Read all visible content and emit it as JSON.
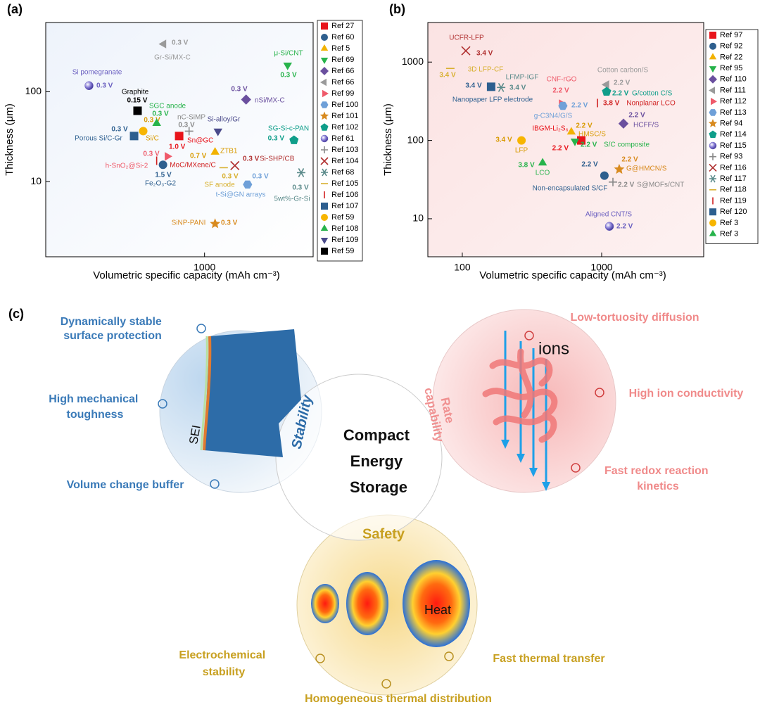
{
  "chart_data": [
    {
      "type": "scatter",
      "panel": "(a)",
      "xlabel": "Volumetric specific capacity (mAh cm⁻³)",
      "ylabel": "Thickness (μm)",
      "xscale": "log",
      "yscale": "log",
      "xlim": [
        167,
        3400
      ],
      "ylim": [
        1.46,
        590
      ],
      "xticks": [
        1000
      ],
      "yticks": [
        10,
        100
      ],
      "series": [
        {
          "name": "Ref 27",
          "color": "#e8141b",
          "marker": "square",
          "x": [
            751
          ],
          "values": [
            32.2
          ],
          "label": "Sn@GC",
          "voltage": "1.0 V"
        },
        {
          "name": "Ref 60",
          "color": "#2e5f8e",
          "marker": "circle",
          "x": [
            626
          ],
          "values": [
            15.4
          ],
          "label": "Fe₂O₃-G2",
          "voltage": "1.5 V"
        },
        {
          "name": "Ref 5",
          "color": "#f2b200",
          "marker": "tri-up",
          "x": [
            1126
          ],
          "values": [
            21.3
          ],
          "label": "ZTB1",
          "voltage": "0.7 V"
        },
        {
          "name": "Ref 69",
          "color": "#27b34b",
          "marker": "tri-down",
          "x": [
            2550
          ],
          "values": [
            198
          ],
          "label": "μ-Si/CNT",
          "voltage": "0.3 V"
        },
        {
          "name": "Ref 66",
          "color": "#6a4f9e",
          "marker": "diamond",
          "x": [
            1597
          ],
          "values": [
            82
          ],
          "label": "nSi/MX-C",
          "voltage": "0.3 V"
        },
        {
          "name": "Ref 66",
          "color": "#9a9a9a",
          "marker": "tri-left",
          "x": [
            631
          ],
          "values": [
            340
          ],
          "label": "Gr-Si/MX-C",
          "voltage": "0.3 V"
        },
        {
          "name": "Ref 99",
          "color": "#ef5a6a",
          "marker": "tri-right",
          "x": [
            657
          ],
          "values": [
            19.1
          ],
          "label": "h-SnO₂@Si-2",
          "voltage": "0.3 V"
        },
        {
          "name": "Ref 100",
          "color": "#6fa0d8",
          "marker": "hexagon",
          "x": [
            1623
          ],
          "values": [
            9.3
          ],
          "label": "t-Si@GN arrays",
          "voltage": "0.3 V"
        },
        {
          "name": "Ref 101",
          "color": "#d88a1e",
          "marker": "star",
          "x": [
            1126
          ],
          "values": [
            3.4
          ],
          "label": "SiNP-PANI",
          "voltage": "0.3 V"
        },
        {
          "name": "Ref 102",
          "color": "#0f9e8a",
          "marker": "pentagon",
          "x": [
            2740
          ],
          "values": [
            28.9
          ],
          "label": "SG-Si-c-PAN",
          "voltage": "0.3 V"
        },
        {
          "name": "Ref 61",
          "color": "#6a5fc0",
          "marker": "sphere",
          "x": [
            272
          ],
          "values": [
            117
          ],
          "label": "Si pomegranate",
          "voltage": "0.3 V"
        },
        {
          "name": "Ref 103",
          "color": "#888888",
          "marker": "plus",
          "x": [
            840
          ],
          "values": [
            36.5
          ],
          "label": "nC-SiMP",
          "voltage": "0.3 V"
        },
        {
          "name": "Ref 104",
          "color": "#b03030",
          "marker": "x",
          "x": [
            1407
          ],
          "values": [
            15.1
          ],
          "label": "Si-SHP/CB",
          "voltage": "0.3 V"
        },
        {
          "name": "Ref 68",
          "color": "#5a8a8a",
          "marker": "asterisk",
          "x": [
            2970
          ],
          "values": [
            12.6
          ],
          "label": "5wt%-Gr-Si",
          "voltage": "0.3 V"
        },
        {
          "name": "Ref 105",
          "color": "#d8b030",
          "marker": "hline",
          "x": [
            1240
          ],
          "values": [
            14.3
          ],
          "label": "SF anode",
          "voltage": "0.3 V"
        },
        {
          "name": "Ref 106",
          "color": "#d02020",
          "marker": "vline",
          "x": [
            583
          ],
          "values": [
            17.1
          ],
          "label": "MoC/MXene/C"
        },
        {
          "name": "Ref 107",
          "color": "#2d5f8f",
          "marker": "square",
          "x": [
            452
          ],
          "values": [
            32.2
          ],
          "label": "Porous Si/C-Gr",
          "voltage": "0.3 V"
        },
        {
          "name": "Ref 59",
          "color": "#f7b500",
          "marker": "circle",
          "x": [
            501
          ],
          "values": [
            36.5
          ],
          "label": "Si/C",
          "voltage": "0.3 V"
        },
        {
          "name": "Ref 108",
          "color": "#27b34b",
          "marker": "tri-up",
          "x": [
            583
          ],
          "values": [
            44.5
          ],
          "label": "SGC anode",
          "voltage": "0.3 V"
        },
        {
          "name": "Ref 109",
          "color": "#4a4a8a",
          "marker": "tri-down",
          "x": [
            1163
          ],
          "values": [
            36.5
          ],
          "label": "Si-alloy/Gr"
        },
        {
          "name": "Ref 59",
          "color": "#000000",
          "marker": "square",
          "x": [
            470
          ],
          "values": [
            61.5
          ],
          "label": "Graphite",
          "voltage": "0.15 V"
        }
      ]
    },
    {
      "type": "scatter",
      "panel": "(b)",
      "xlabel": "Volumetric specific capacity (mAh cm⁻³)",
      "ylabel": "Thickness (μm)",
      "xscale": "log",
      "yscale": "log",
      "xlim": [
        56.6,
        5400
      ],
      "ylim": [
        3.27,
        3200
      ],
      "xticks": [
        100,
        1000
      ],
      "yticks": [
        10,
        100,
        1000
      ],
      "series": [
        {
          "name": "Ref 97",
          "color": "#e8141b",
          "marker": "square",
          "x": [
            714
          ],
          "values": [
            100
          ],
          "label": "IBGM-Li₂S₆",
          "voltage": "2.2 V"
        },
        {
          "name": "Ref 92",
          "color": "#2e5f8e",
          "marker": "circle",
          "x": [
            1047
          ],
          "values": [
            35.5
          ],
          "label": "Non-encapsulated S/CF",
          "voltage": "2.2 V"
        },
        {
          "name": "Ref 22",
          "color": "#f2b200",
          "marker": "tri-up",
          "x": [
            606
          ],
          "values": [
            128
          ],
          "label": "HMSC/S",
          "voltage": "2.2 V"
        },
        {
          "name": "Ref 95",
          "color": "#27b34b",
          "marker": "tri-down",
          "x": [
            643
          ],
          "values": [
            98
          ],
          "label": "S/C composite",
          "voltage": "2.2 V"
        },
        {
          "name": "Ref 110",
          "color": "#6a4f9e",
          "marker": "diamond",
          "x": [
            1435
          ],
          "values": [
            164
          ],
          "label": "HCFF/S",
          "voltage": "2.2 V"
        },
        {
          "name": "Ref 111",
          "color": "#9a9a9a",
          "marker": "tri-left",
          "x": [
            1085
          ],
          "values": [
            515
          ],
          "label": "Cotton carbon/S",
          "voltage": "2.2 V"
        },
        {
          "name": "Ref 112",
          "color": "#ef5a6a",
          "marker": "tri-right",
          "x": [
            515
          ],
          "values": [
            294
          ],
          "label": "CNF-rGO",
          "voltage": "2.2 V"
        },
        {
          "name": "Ref 113",
          "color": "#6fa0d8",
          "marker": "hexagon",
          "x": [
            527
          ],
          "values": [
            276
          ],
          "label": "g-C3N4/G/S",
          "voltage": "2.2 V"
        },
        {
          "name": "Ref 94",
          "color": "#d88a1e",
          "marker": "star",
          "x": [
            1337
          ],
          "values": [
            42.7
          ],
          "label": "G@HMCN/S",
          "voltage": "2.2 V"
        },
        {
          "name": "Ref 114",
          "color": "#0f9e8a",
          "marker": "pentagon",
          "x": [
            1085
          ],
          "values": [
            418
          ],
          "label": "G/cotton C/S",
          "voltage": "2.2 V"
        },
        {
          "name": "Ref 115",
          "color": "#6a5fc0",
          "marker": "sphere",
          "x": [
            1137
          ],
          "values": [
            8.0
          ],
          "label": "Aligned CNT/S",
          "voltage": "2.2 V"
        },
        {
          "name": "Ref 93",
          "color": "#888888",
          "marker": "plus",
          "x": [
            1205
          ],
          "values": [
            29.4
          ],
          "label": "S@MOFs/CNT",
          "voltage": "2.2 V"
        },
        {
          "name": "Ref 116",
          "color": "#b03030",
          "marker": "x",
          "x": [
            106
          ],
          "values": [
            1393
          ],
          "label": "UCFR-LFP",
          "voltage": "3.4 V"
        },
        {
          "name": "Ref 117",
          "color": "#5a8a8a",
          "marker": "asterisk",
          "x": [
            190
          ],
          "values": [
            474
          ],
          "label": "LFMP-IGF",
          "voltage": "3.4 V"
        },
        {
          "name": "Ref 118",
          "color": "#d8b030",
          "marker": "hline",
          "x": [
            82
          ],
          "values": [
            830
          ],
          "label": "3D LFP-CF",
          "voltage": "3.4 V"
        },
        {
          "name": "Ref 119",
          "color": "#d02020",
          "marker": "vline",
          "x": [
            933
          ],
          "values": [
            300
          ],
          "label": "Nonplanar LCO",
          "voltage": "3.8 V"
        },
        {
          "name": "Ref 120",
          "color": "#2d5f8f",
          "marker": "square",
          "x": [
            161
          ],
          "values": [
            484
          ],
          "label": "Nanopaper LFP electrode",
          "voltage": "3.4 V"
        },
        {
          "name": "Ref 3",
          "color": "#f7b500",
          "marker": "circle",
          "x": [
            266
          ],
          "values": [
            100
          ],
          "label": "LFP",
          "voltage": "3.4 V"
        },
        {
          "name": "Ref 3",
          "color": "#27b34b",
          "marker": "tri-up",
          "x": [
            377
          ],
          "values": [
            51.5
          ],
          "label": "LCO",
          "voltage": "3.8 V"
        }
      ]
    }
  ],
  "diagram": {
    "panel": "(c)",
    "center": [
      "Compact",
      "Energy",
      "Storage"
    ],
    "stability": {
      "title": "Stability",
      "sei": "SEI",
      "features": [
        [
          "Dynamically stable",
          "surface protection"
        ],
        [
          "High mechanical",
          "toughness"
        ],
        [
          "Volume change buffer"
        ]
      ]
    },
    "rate": {
      "title": [
        "Rate",
        "capability"
      ],
      "ions": "ions",
      "features": [
        [
          "Low-tortuosity diffusion"
        ],
        [
          "High ion conductivity"
        ],
        [
          "Fast redox reaction",
          "kinetics"
        ]
      ]
    },
    "safety": {
      "title": "Safety",
      "heat": "Heat",
      "features": [
        [
          "Electrochemical",
          "stability"
        ],
        [
          "Fast thermal transfer"
        ],
        [
          "Homogeneous thermal distribution"
        ]
      ]
    }
  }
}
